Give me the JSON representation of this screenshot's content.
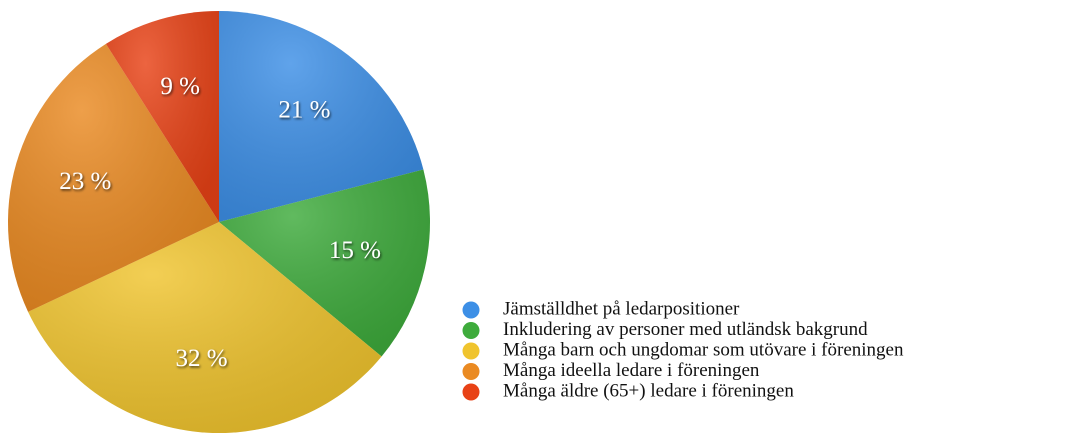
{
  "chart_data": {
    "type": "pie",
    "categories": [
      "Jämställdhet på ledarpositioner",
      "Inkludering av personer med utländsk bakgrund",
      "Många barn och ungdomar som utövare i föreningen",
      "Många ideella ledare i föreningen",
      "Många äldre (65+) ledare i föreningen"
    ],
    "values": [
      21,
      15,
      32,
      23,
      9
    ],
    "value_labels": [
      "21 %",
      "15 %",
      "32 %",
      "23 %",
      "9 %"
    ],
    "colors": [
      "#3d8fe6",
      "#3eab3c",
      "#f0c42e",
      "#ea8a22",
      "#e84216"
    ]
  }
}
